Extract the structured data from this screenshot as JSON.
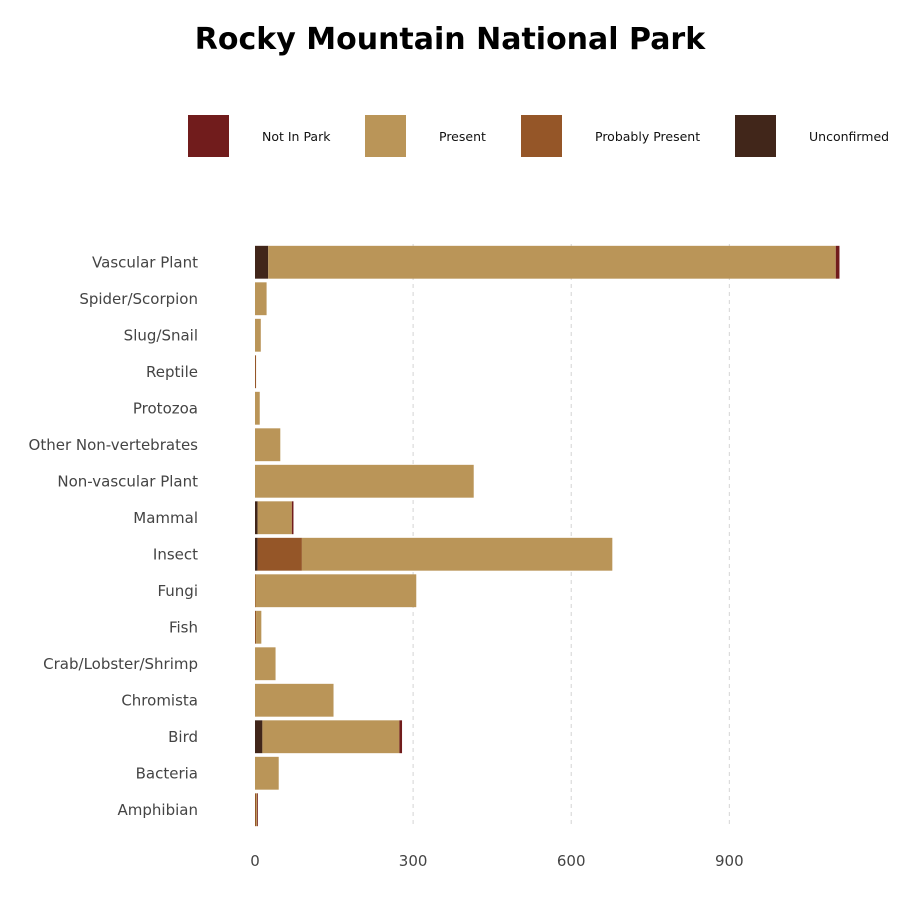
{
  "chart_data": {
    "type": "bar",
    "orientation": "horizontal",
    "stacked": true,
    "title": "Rocky Mountain National Park",
    "xlabel": "",
    "ylabel": "",
    "xlim": [
      0,
      1110
    ],
    "xticks": [
      0,
      300,
      600,
      900
    ],
    "grid": "vertical dashed",
    "legend_position": "top",
    "categories": [
      "Vascular Plant",
      "Spider/Scorpion",
      "Slug/Snail",
      "Reptile",
      "Protozoa",
      "Other Non-vertebrates",
      "Non-vascular Plant",
      "Mammal",
      "Insect",
      "Fungi",
      "Fish",
      "Crab/Lobster/Shrimp",
      "Chromista",
      "Bird",
      "Bacteria",
      "Amphibian"
    ],
    "series": [
      {
        "name": "Unconfirmed",
        "color": "#41261a",
        "values": [
          25,
          0,
          0,
          0,
          0,
          0,
          0,
          5,
          5,
          0,
          0,
          0,
          0,
          14,
          0,
          0
        ]
      },
      {
        "name": "Probably Present",
        "color": "#955628",
        "values": [
          0,
          0,
          0,
          2,
          0,
          0,
          0,
          0,
          84,
          1,
          2,
          0,
          0,
          0,
          0,
          2
        ]
      },
      {
        "name": "Present",
        "color": "#ba9558",
        "values": [
          1077,
          22,
          11,
          0,
          9,
          48,
          415,
          65,
          589,
          305,
          10,
          39,
          149,
          260,
          45,
          2
        ]
      },
      {
        "name": "Not In Park",
        "color": "#711c1c",
        "values": [
          7,
          0,
          0,
          0,
          0,
          0,
          0,
          3,
          0,
          0,
          0,
          0,
          0,
          5,
          0,
          1
        ]
      }
    ],
    "legend_order": [
      "Not In Park",
      "Present",
      "Probably Present",
      "Unconfirmed"
    ]
  }
}
